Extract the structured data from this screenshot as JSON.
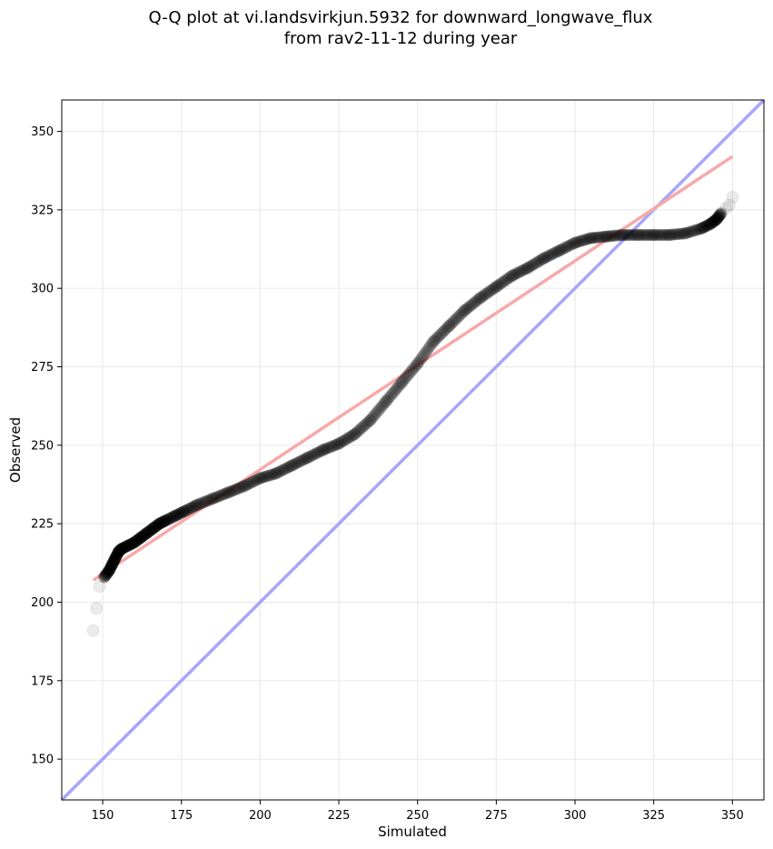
{
  "chart_data": {
    "type": "scatter",
    "title_line1": "Q-Q plot at vi.landsvirkjun.5932 for downward_longwave_flux",
    "title_line2": "from rav2-11-12 during year",
    "xlabel": "Simulated",
    "ylabel": "Observed",
    "xlim": [
      137,
      360
    ],
    "ylim": [
      137,
      360
    ],
    "xticks": [
      150,
      175,
      200,
      225,
      250,
      275,
      300,
      325,
      350
    ],
    "yticks": [
      150,
      175,
      200,
      225,
      250,
      275,
      300,
      325,
      350
    ],
    "grid": true,
    "quantile_points": [
      [
        147,
        191
      ],
      [
        148,
        198
      ],
      [
        149,
        205
      ],
      [
        150.5,
        208
      ],
      [
        152,
        210
      ],
      [
        153,
        212
      ],
      [
        154,
        214
      ],
      [
        155,
        216
      ],
      [
        156,
        217
      ],
      [
        158,
        218
      ],
      [
        160,
        219
      ],
      [
        162,
        220.5
      ],
      [
        164,
        222
      ],
      [
        166,
        223.5
      ],
      [
        168,
        225
      ],
      [
        170,
        226
      ],
      [
        173,
        227.5
      ],
      [
        176,
        229
      ],
      [
        180,
        231
      ],
      [
        185,
        233
      ],
      [
        190,
        235
      ],
      [
        195,
        237
      ],
      [
        200,
        239.5
      ],
      [
        205,
        241
      ],
      [
        210,
        243.5
      ],
      [
        215,
        246
      ],
      [
        220,
        248.5
      ],
      [
        225,
        250.5
      ],
      [
        230,
        253.5
      ],
      [
        235,
        258
      ],
      [
        240,
        264
      ],
      [
        245,
        270
      ],
      [
        250,
        276
      ],
      [
        255,
        283
      ],
      [
        260,
        288
      ],
      [
        265,
        293
      ],
      [
        270,
        297
      ],
      [
        275,
        300.5
      ],
      [
        280,
        304
      ],
      [
        285,
        306.5
      ],
      [
        290,
        309.5
      ],
      [
        295,
        312
      ],
      [
        300,
        314.5
      ],
      [
        305,
        316
      ],
      [
        310,
        316.5
      ],
      [
        315,
        317
      ],
      [
        320,
        317
      ],
      [
        325,
        317
      ],
      [
        330,
        317
      ],
      [
        335,
        317.5
      ],
      [
        340,
        319
      ],
      [
        343,
        320.5
      ],
      [
        345,
        322
      ],
      [
        346.5,
        324
      ],
      [
        348,
        325.5
      ],
      [
        349,
        326.5
      ],
      [
        350,
        329
      ]
    ],
    "identity_line": {
      "x": [
        137,
        360
      ],
      "y": [
        137,
        360
      ],
      "color": "#a6a6fa"
    },
    "fit_line": {
      "x": [
        147,
        350
      ],
      "y": [
        207,
        342
      ],
      "color": "#f7a9a9"
    }
  }
}
